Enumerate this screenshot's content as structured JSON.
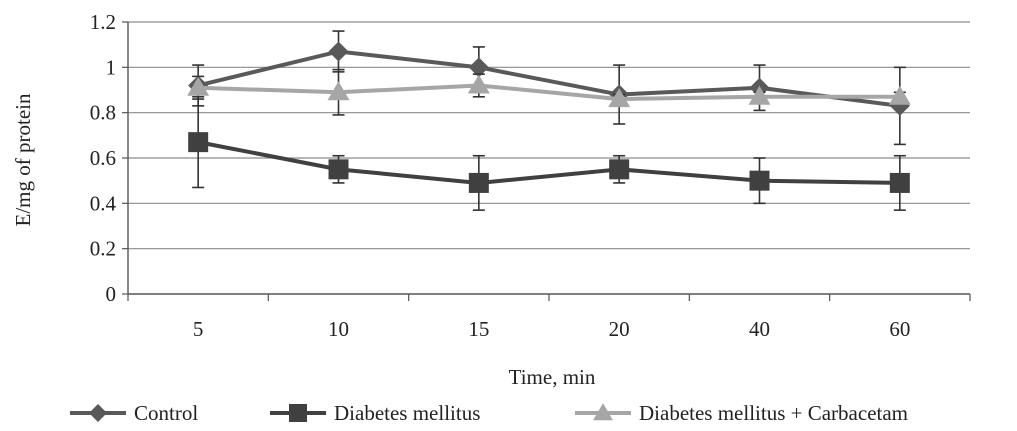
{
  "chart_data": {
    "type": "line",
    "title": "",
    "xlabel": "Time, min",
    "ylabel": "E/mg of protein",
    "categories": [
      "5",
      "10",
      "15",
      "20",
      "40",
      "60"
    ],
    "ylim": [
      0,
      1.2
    ],
    "yticks": [
      "0",
      "0.2",
      "0.4",
      "0.6",
      "0.8",
      "1",
      "1.2"
    ],
    "ytick_values": [
      0,
      0.2,
      0.4,
      0.6,
      0.8,
      1.0,
      1.2
    ],
    "grid": true,
    "legend_position": "bottom",
    "series": [
      {
        "name": "Control",
        "marker": "diamond",
        "color": "#595959",
        "values": [
          0.92,
          1.07,
          1.0,
          0.88,
          0.91,
          0.83
        ],
        "error": [
          0.09,
          0.09,
          0.09,
          0.13,
          0.1,
          0.17
        ]
      },
      {
        "name": "Diabetes mellitus",
        "marker": "square",
        "color": "#404040",
        "values": [
          0.67,
          0.55,
          0.49,
          0.55,
          0.5,
          0.49
        ],
        "error": [
          0.2,
          0.06,
          0.12,
          0.06,
          0.1,
          0.12
        ]
      },
      {
        "name": "Diabetes mellitus + Carbacetam",
        "marker": "triangle",
        "color": "#a6a6a6",
        "values": [
          0.91,
          0.89,
          0.92,
          0.86,
          0.87,
          0.87
        ],
        "error": [
          0.05,
          0.1,
          0.05,
          0.02,
          0.02,
          0.02
        ]
      }
    ]
  }
}
